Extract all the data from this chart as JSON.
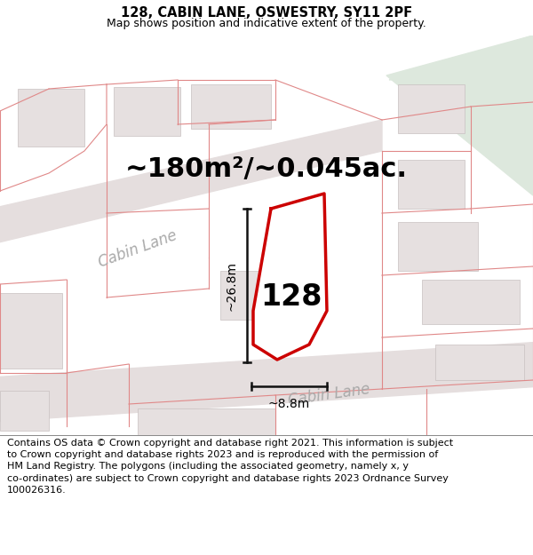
{
  "title": "128, CABIN LANE, OSWESTRY, SY11 2PF",
  "subtitle": "Map shows position and indicative extent of the property.",
  "footer_line1": "Contains OS data © Crown copyright and database right 2021. This information is subject",
  "footer_line2": "to Crown copyright and database rights 2023 and is reproduced with the permission of",
  "footer_line3": "HM Land Registry. The polygons (including the associated geometry, namely x, y",
  "footer_line4": "co-ordinates) are subject to Crown copyright and database rights 2023 Ordnance Survey",
  "footer_line5": "100026316.",
  "area_label": "~180m²/~0.045ac.",
  "number_label": "128",
  "dim_height": "~26.8m",
  "dim_width": "~8.8m",
  "road_label_1": "Cabin Lane",
  "road_label_2": "Cabin Lane",
  "map_bg": "#f7f2f2",
  "green_area_color": "#dde8dd",
  "road_fill": "#e8e0e0",
  "building_fill": "#e6e0e0",
  "building_edge": "#c8c0c0",
  "property_line_color": "#e08888",
  "plot_outline_color": "#cc0000",
  "dim_line_color": "#111111",
  "road_label_color": "#aaaaaa",
  "title_fontsize": 10.5,
  "subtitle_fontsize": 9,
  "footer_fontsize": 8,
  "area_fontsize": 22,
  "number_fontsize": 24,
  "dim_fontsize": 10,
  "road_fontsize": 12
}
